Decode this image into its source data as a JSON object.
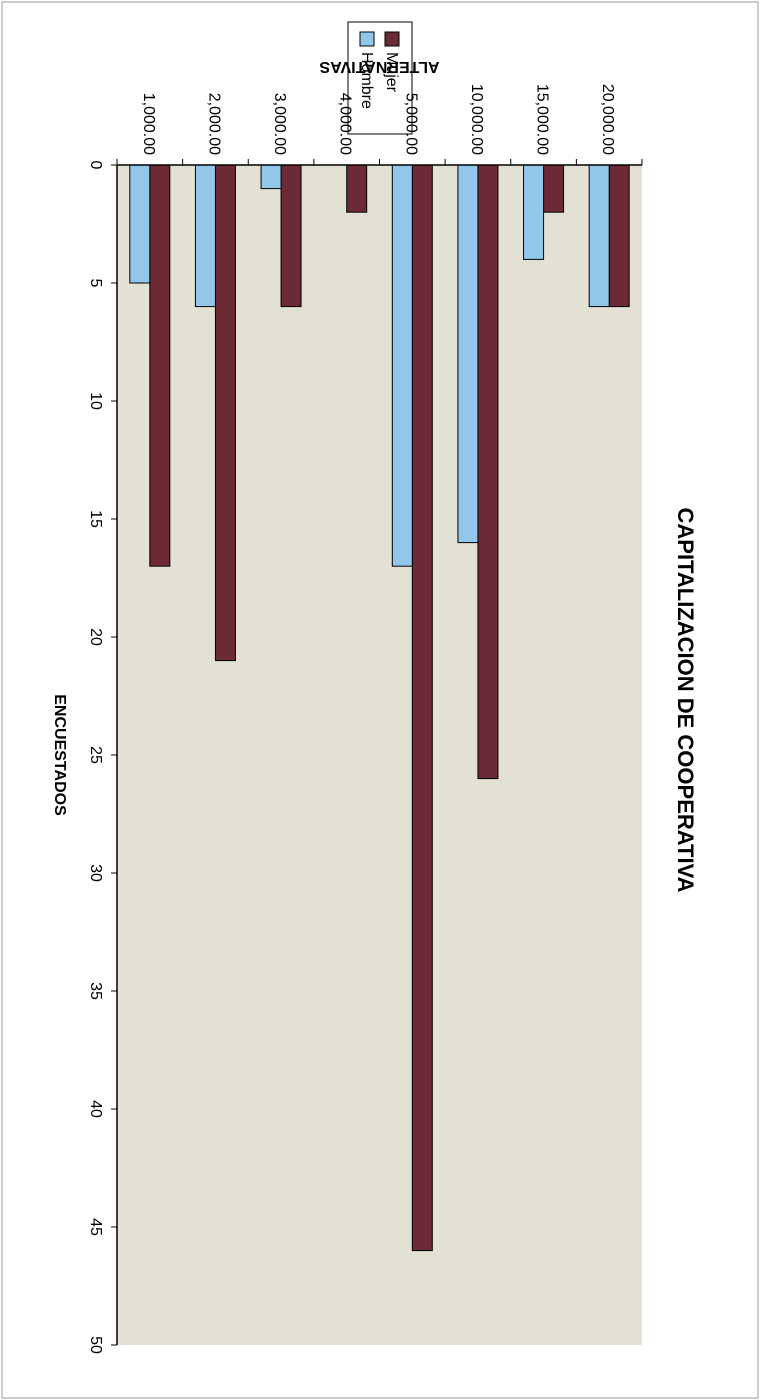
{
  "chart_data": {
    "type": "bar",
    "orientation": "horizontal",
    "title": "CAPITALIZACION DE COOPERATIVA",
    "xlabel": "ENCUESTADOS",
    "ylabel": "ALTERNATIVAS",
    "categories": [
      "20,000.00",
      "15,000.00",
      "10,000.00",
      "5,000.00",
      "4,000.00",
      "3,000.00",
      "2,000.00",
      "1,000.00"
    ],
    "series": [
      {
        "name": "Mujer",
        "values": [
          6,
          2,
          26,
          46,
          2,
          6,
          21,
          17
        ],
        "color": "#6b2a36"
      },
      {
        "name": "Hombre",
        "values": [
          6,
          4,
          16,
          17,
          0,
          1,
          6,
          5
        ],
        "color": "#92c7ea"
      }
    ],
    "xlim": [
      0,
      50
    ],
    "xticks": [
      0,
      5,
      10,
      15,
      20,
      25,
      30,
      35,
      40,
      45,
      50
    ],
    "grid": false,
    "legend_position": "top-right",
    "plot_background": "#e2e1d4"
  }
}
